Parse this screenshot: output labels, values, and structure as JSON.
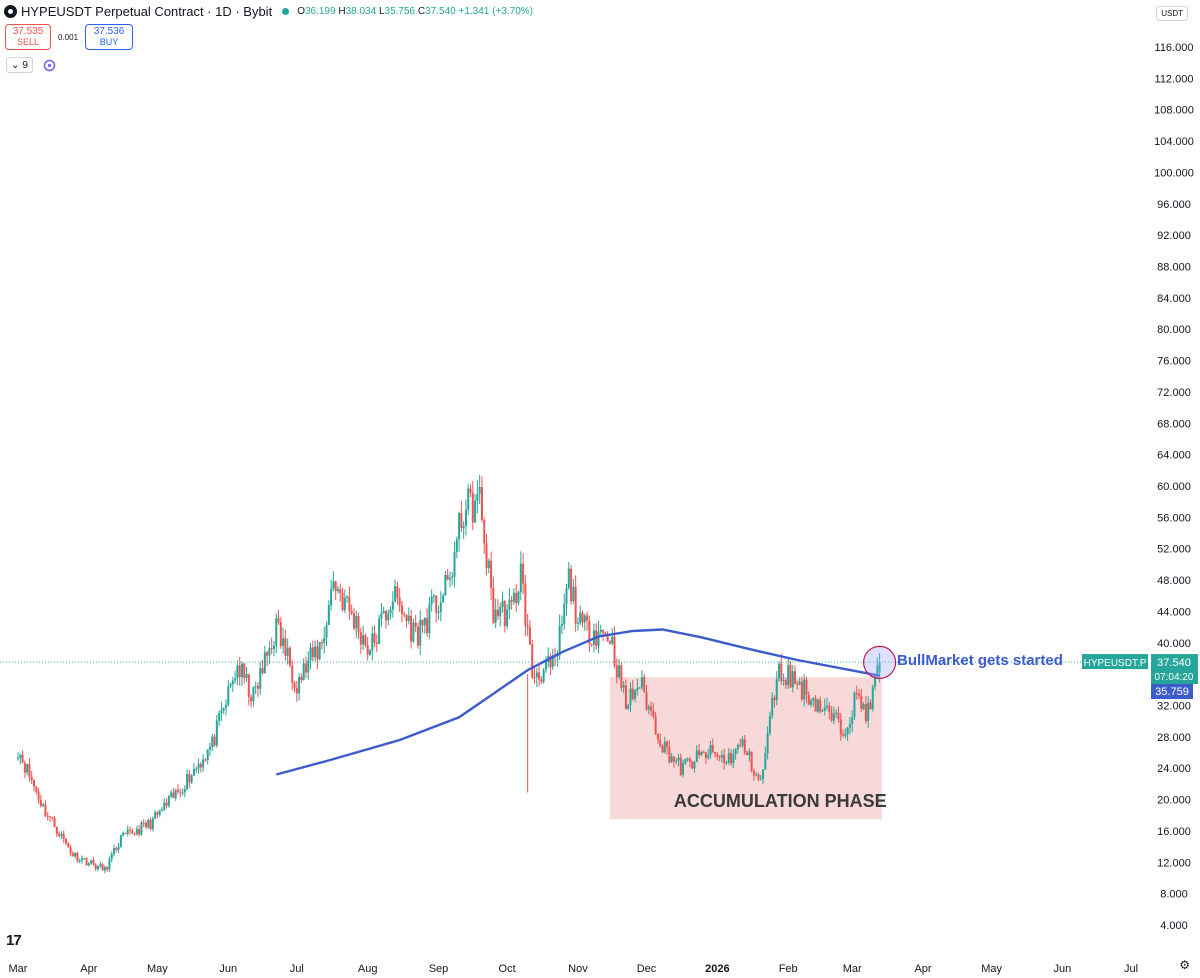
{
  "header": {
    "title": "HYPEUSDT Perpetual Contract · 1D · Bybit",
    "open_label": "O",
    "open": "36.199",
    "high_label": "H",
    "high": "38.034",
    "low_label": "L",
    "low": "35.756",
    "close_label": "C",
    "close": "37.540",
    "change": "+1.341 (+3.70%)"
  },
  "trade": {
    "sell_price": "37.535",
    "sell_label": "SELL",
    "spread": "0.001",
    "buy_price": "37.536",
    "buy_label": "BUY"
  },
  "indicator": {
    "count": "9"
  },
  "currency": "USDT",
  "brand": "17",
  "colors": {
    "up": "#26a69a",
    "down": "#ef5350",
    "ma": "#3d5ccc",
    "zone": "#f4cccc",
    "annotation": "#3d5ccc"
  },
  "chart_data": {
    "type": "candlestick",
    "title": "HYPEUSDT Perpetual Contract · 1D · Bybit",
    "x_tick_labels": [
      "Mar",
      "Apr",
      "May",
      "Jun",
      "Jul",
      "Aug",
      "Sep",
      "Oct",
      "Nov",
      "Dec",
      "2026",
      "Feb",
      "Mar",
      "Apr",
      "May",
      "Jun",
      "Jul"
    ],
    "y_tick_labels": [
      "116.000",
      "112.000",
      "108.000",
      "104.000",
      "100.000",
      "96.000",
      "92.000",
      "88.000",
      "84.000",
      "80.000",
      "76.000",
      "72.000",
      "68.000",
      "64.000",
      "60.000",
      "56.000",
      "52.000",
      "48.000",
      "44.000",
      "40.000",
      "36.000",
      "32.000",
      "28.000",
      "24.000",
      "20.000",
      "16.000",
      "12.000",
      "8.000",
      "4.000"
    ],
    "ylim": [
      2,
      120
    ],
    "price_path": [
      [
        "2025-03-01",
        26.5
      ],
      [
        "2025-03-12",
        19
      ],
      [
        "2025-03-25",
        13
      ],
      [
        "2025-04-08",
        11
      ],
      [
        "2025-04-15",
        15
      ],
      [
        "2025-04-28",
        17
      ],
      [
        "2025-05-10",
        21
      ],
      [
        "2025-05-25",
        27
      ],
      [
        "2025-06-05",
        37
      ],
      [
        "2025-06-12",
        33
      ],
      [
        "2025-06-22",
        42
      ],
      [
        "2025-07-01",
        35
      ],
      [
        "2025-07-12",
        40
      ],
      [
        "2025-07-17",
        48
      ],
      [
        "2025-08-02",
        39
      ],
      [
        "2025-08-12",
        46
      ],
      [
        "2025-08-22",
        41
      ],
      [
        "2025-09-05",
        47
      ],
      [
        "2025-09-12",
        57
      ],
      [
        "2025-09-19",
        58
      ],
      [
        "2025-09-25",
        44
      ],
      [
        "2025-10-03",
        44
      ],
      [
        "2025-10-07",
        49
      ],
      [
        "2025-10-12",
        36
      ],
      [
        "2025-10-22",
        37
      ],
      [
        "2025-10-28",
        48
      ],
      [
        "2025-11-02",
        42
      ],
      [
        "2025-11-15",
        41
      ],
      [
        "2025-11-22",
        32
      ],
      [
        "2025-11-28",
        35
      ],
      [
        "2025-12-08",
        27
      ],
      [
        "2025-12-16",
        24
      ],
      [
        "2025-12-28",
        26
      ],
      [
        "2026-01-05",
        25
      ],
      [
        "2026-01-12",
        27
      ],
      [
        "2026-01-20",
        22
      ],
      [
        "2026-01-27",
        36
      ],
      [
        "2026-02-01",
        36
      ],
      [
        "2026-02-08",
        34
      ],
      [
        "2026-02-18",
        31
      ],
      [
        "2026-02-25",
        29
      ],
      [
        "2026-03-03",
        33
      ],
      [
        "2026-03-08",
        31
      ],
      [
        "2026-03-13",
        37.5
      ]
    ],
    "series": [
      {
        "name": "",
        "type": "moving_average",
        "points": [
          [
            "2025-06-22",
            23.2
          ],
          [
            "2025-07-15",
            25
          ],
          [
            "2025-08-15",
            27.6
          ],
          [
            "2025-09-10",
            30.5
          ],
          [
            "2025-09-25",
            33.5
          ],
          [
            "2025-10-10",
            36.5
          ],
          [
            "2025-10-25",
            38.8
          ],
          [
            "2025-11-10",
            40.8
          ],
          [
            "2025-11-25",
            41.5
          ],
          [
            "2025-12-08",
            41.7
          ],
          [
            "2025-12-25",
            40.7
          ],
          [
            "2026-01-15",
            39.2
          ],
          [
            "2026-02-05",
            37.8
          ],
          [
            "2026-02-25",
            36.7
          ],
          [
            "2026-03-13",
            35.8
          ]
        ]
      }
    ],
    "annotations": [
      {
        "text": "ACCUMULATION PHASE",
        "x_range": [
          "2025-11-15",
          "2026-03-14"
        ],
        "y_range": [
          17.5,
          35.6
        ]
      },
      {
        "text": "BullMarket gets started",
        "x": "2026-03-13",
        "y": 37.5
      }
    ],
    "last_price": {
      "symbol": "HYPEUSDT.P",
      "value": "37.540",
      "countdown": "07:04:20",
      "value_num": 37.54
    },
    "ma_value": {
      "value": "35.759",
      "value_num": 35.759
    }
  }
}
